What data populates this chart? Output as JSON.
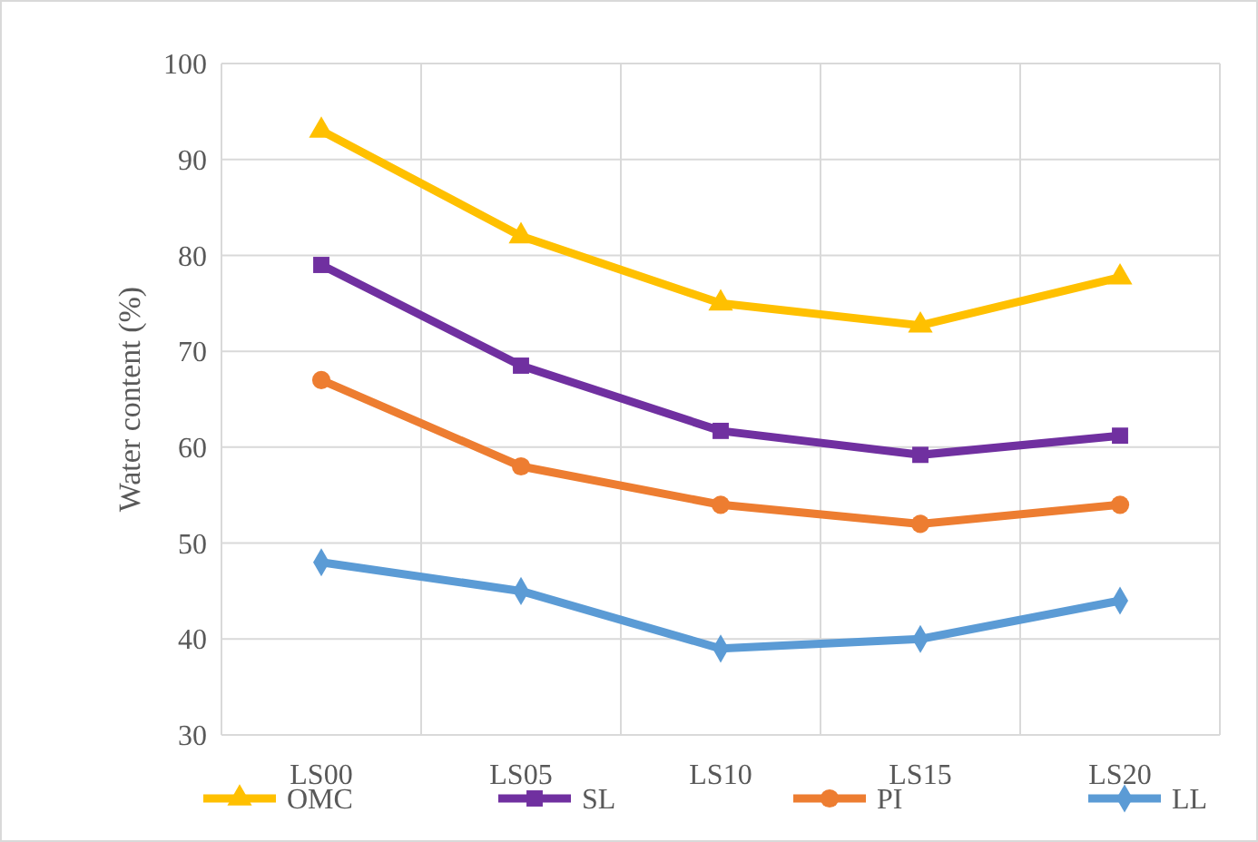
{
  "chart_data": {
    "type": "line",
    "ylabel": "Water content (%)",
    "categories": [
      "LS00",
      "LS05",
      "LS10",
      "LS15",
      "LS20"
    ],
    "ylim": [
      30,
      100
    ],
    "yticks": [
      30,
      40,
      50,
      60,
      70,
      80,
      90,
      100
    ],
    "grid": true,
    "legend": "bottom",
    "series": [
      {
        "name": "OMC",
        "color": "#ffc000",
        "marker": "triangle",
        "values": [
          93,
          82,
          75,
          72.7,
          77.7
        ]
      },
      {
        "name": "SL",
        "color": "#7030a0",
        "marker": "square",
        "values": [
          79,
          68.5,
          61.7,
          59.2,
          61.2
        ]
      },
      {
        "name": "PI",
        "color": "#ed7d31",
        "marker": "circle",
        "values": [
          67,
          58,
          54,
          52,
          54
        ]
      },
      {
        "name": "LL",
        "color": "#5b9bd5",
        "marker": "diamond",
        "values": [
          48,
          45,
          39,
          40,
          44
        ]
      }
    ]
  }
}
